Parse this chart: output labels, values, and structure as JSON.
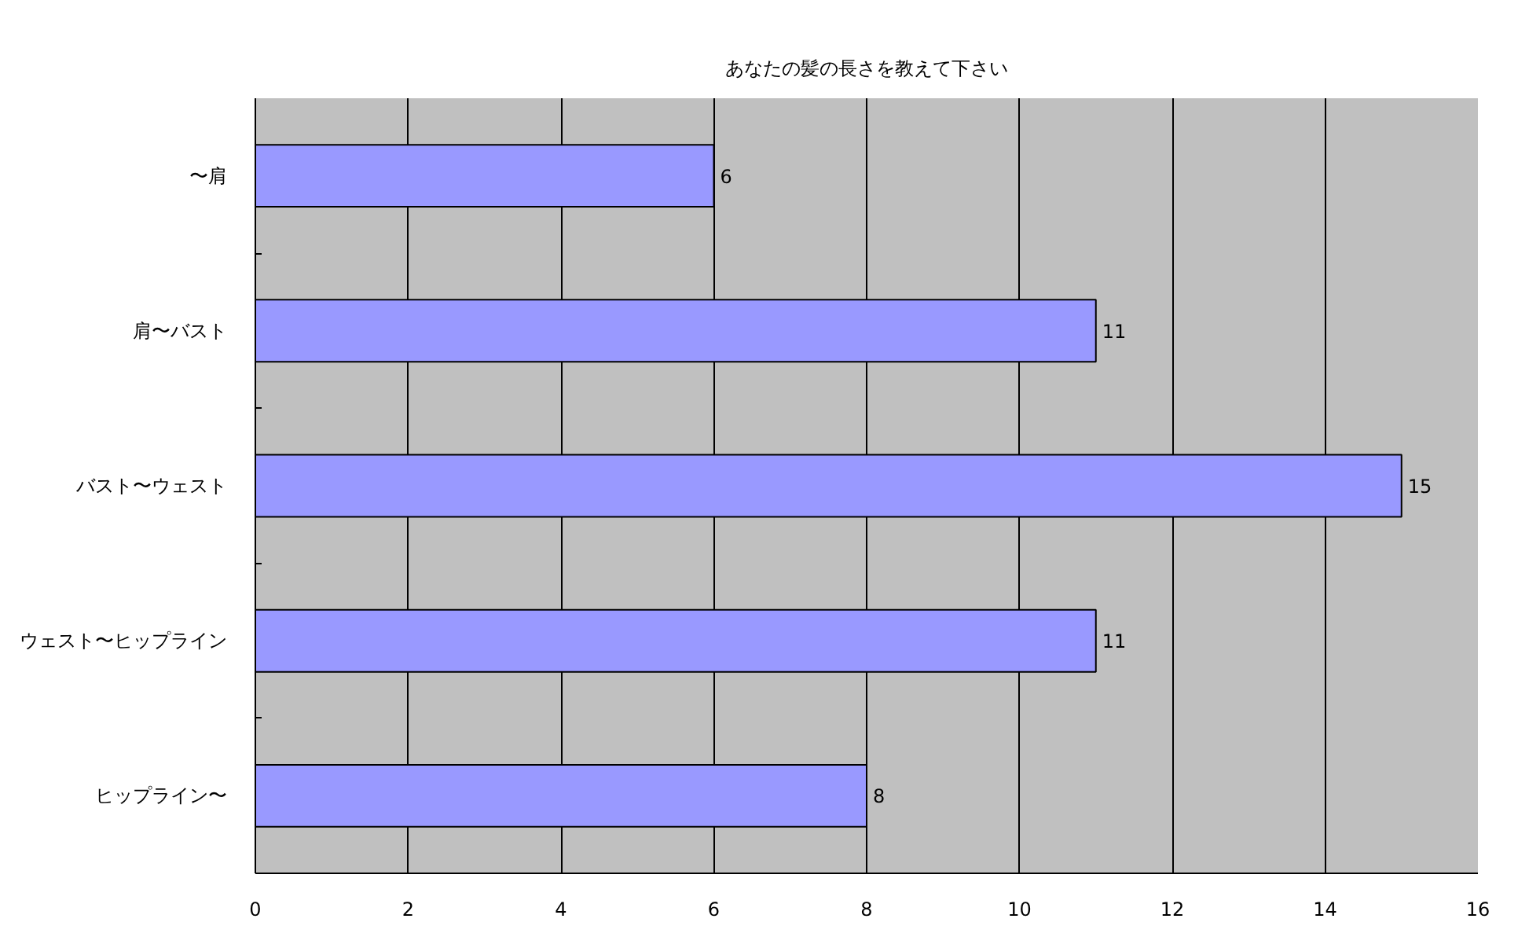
{
  "chart_data": {
    "type": "bar",
    "orientation": "horizontal",
    "title": "あなたの髪の長さを教えて下さい",
    "categories": [
      "〜肩",
      "肩〜バスト",
      "バスト〜ウェスト",
      "ウェスト〜ヒップライン",
      "ヒップライン〜"
    ],
    "values": [
      6,
      11,
      15,
      11,
      8
    ],
    "color": "#9999ff",
    "xlim": [
      0,
      16
    ],
    "xticks": [
      0,
      2,
      4,
      6,
      8,
      10,
      12,
      14,
      16
    ],
    "grid": "x",
    "data_labels": true
  }
}
